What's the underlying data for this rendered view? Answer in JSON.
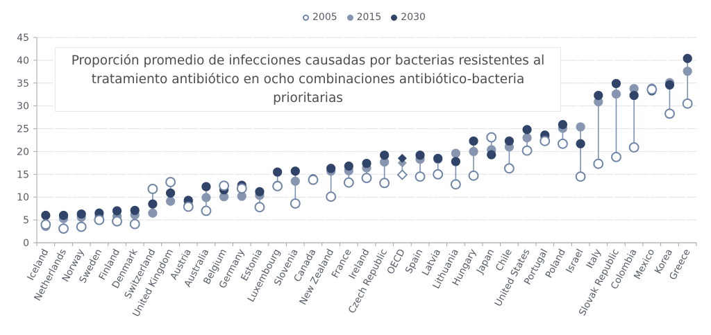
{
  "chart_data": {
    "type": "scatter",
    "subtype": "dot-plot",
    "title": "Proporción promedio de infecciones causadas por bacterias resistentes al tratamiento antibiótico en ocho combinaciones antibiótico-bacteria prioritarias",
    "xlabel": "",
    "ylabel": "",
    "ylim": [
      0,
      45
    ],
    "yticks": [
      0,
      5,
      10,
      15,
      20,
      25,
      30,
      35,
      40,
      45
    ],
    "grid": true,
    "legend_position": "top-center",
    "categories": [
      "Iceland",
      "Netherlands",
      "Norway",
      "Sweden",
      "Finland",
      "Denmark",
      "Switzerland",
      "United Kingdom",
      "Austria",
      "Australia",
      "Belgium",
      "Germany",
      "Estonia",
      "Luxembourg",
      "Slovenia",
      "Canada",
      "New Zealand",
      "France",
      "Ireland",
      "Czech Republic",
      "OECD",
      "Spain",
      "Latvia",
      "Lithuania",
      "Hungary",
      "Japan",
      "Chile",
      "United States",
      "Portugal",
      "Poland",
      "Israel",
      "Italy",
      "Slovak Republic",
      "Colombia",
      "Mexico",
      "Korea",
      "Greece"
    ],
    "highlight_category": "OECD",
    "series": [
      {
        "name": "2005",
        "marker": "hollow-circle",
        "color": "#6f85a8",
        "values": [
          4.0,
          3.1,
          3.5,
          5.0,
          4.7,
          4.1,
          11.8,
          13.3,
          7.9,
          7.0,
          12.5,
          11.9,
          7.8,
          12.4,
          8.6,
          13.8,
          10.1,
          13.2,
          14.2,
          13.1,
          14.9,
          14.5,
          15.0,
          12.8,
          14.7,
          23.1,
          16.3,
          20.2,
          22.3,
          21.7,
          14.5,
          17.3,
          18.8,
          20.9,
          33.6,
          28.3,
          30.5
        ]
      },
      {
        "name": "2015",
        "marker": "filled-circle",
        "color": "#8796b0",
        "values": [
          3.6,
          5.3,
          5.6,
          5.7,
          5.8,
          6.1,
          6.5,
          9.1,
          9.0,
          9.9,
          10.1,
          10.2,
          10.4,
          12.6,
          13.5,
          13.9,
          15.7,
          15.8,
          16.4,
          17.7,
          17.5,
          18.3,
          18.3,
          19.6,
          20.0,
          20.4,
          21.0,
          23.0,
          23.2,
          25.1,
          25.4,
          30.9,
          32.6,
          33.8,
          33.9,
          35.1,
          37.6
        ]
      },
      {
        "name": "2030",
        "marker": "filled-circle",
        "color": "#2f4468",
        "values": [
          6.0,
          6.0,
          6.3,
          6.5,
          7.0,
          7.1,
          8.5,
          10.9,
          9.3,
          12.3,
          11.6,
          12.6,
          11.2,
          15.5,
          15.7,
          14.0,
          16.3,
          16.8,
          17.4,
          19.2,
          18.5,
          19.2,
          18.5,
          17.8,
          22.3,
          19.3,
          22.3,
          24.8,
          23.6,
          25.9,
          21.7,
          32.3,
          34.9,
          32.3,
          33.3,
          34.6,
          40.4
        ]
      }
    ]
  },
  "colors": {
    "connector": "#7b91b5",
    "grid": "#e4e6ea",
    "axis": "#a6a6a6"
  }
}
